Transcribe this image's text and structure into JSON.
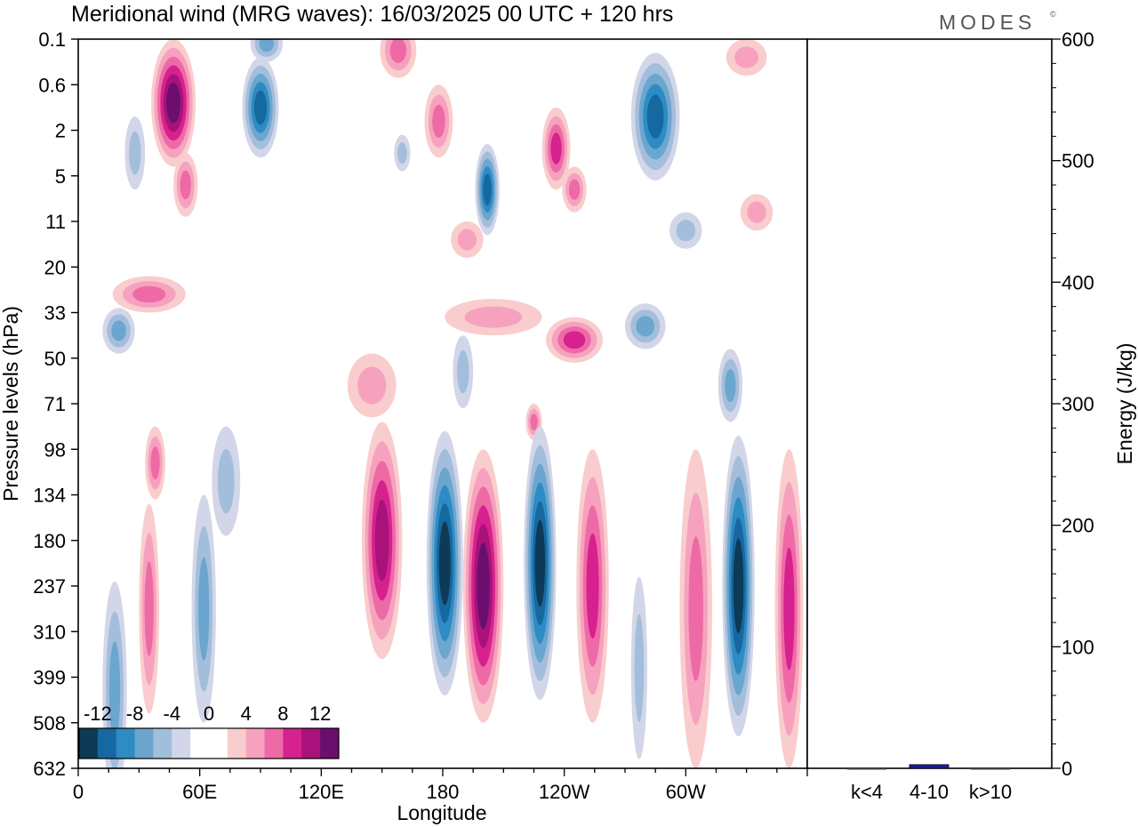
{
  "header": {
    "title": "Meridional wind (MRG waves):  16/03/2025  00 UTC  + 120 hrs",
    "brand": "MODES",
    "brand_mark": "©"
  },
  "chart_data": [
    {
      "type": "heatmap",
      "title": "Meridional wind (MRG waves):  16/03/2025  00 UTC  + 120 hrs",
      "xlabel": "Longitude",
      "ylabel": "Pressure levels (hPa)",
      "x_ticks": [
        {
          "lon": 0,
          "label": "0"
        },
        {
          "lon": 60,
          "label": "60E"
        },
        {
          "lon": 120,
          "label": "120E"
        },
        {
          "lon": 180,
          "label": "180"
        },
        {
          "lon": 240,
          "label": "120W"
        },
        {
          "lon": 300,
          "label": "60W"
        }
      ],
      "xlim": [
        0,
        360
      ],
      "y_levels": [
        "0.1",
        "0.6",
        "2",
        "5",
        "11",
        "20",
        "33",
        "50",
        "71",
        "98",
        "134",
        "180",
        "237",
        "310",
        "399",
        "508",
        "632"
      ],
      "colorbar": {
        "labels": [
          "-12",
          "-8",
          "-4",
          "0",
          "4",
          "8",
          "12"
        ],
        "colors": [
          "#0d3a56",
          "#1668a0",
          "#2e8bc3",
          "#6ba6cf",
          "#a3bedb",
          "#d2d6e8",
          "#ffffff",
          "#ffffff",
          "#f9cdcd",
          "#f6a2be",
          "#ee6aa6",
          "#d6218e",
          "#a8127a",
          "#6b0f6e"
        ]
      },
      "contours": [
        {
          "lon": 47,
          "lev": 1.4,
          "w": 11,
          "h": 1.4,
          "v": 14
        },
        {
          "lon": 53,
          "lev": 3.2,
          "w": 6,
          "h": 0.7,
          "v": 7
        },
        {
          "lon": 90,
          "lev": 1.5,
          "w": 9,
          "h": 1.1,
          "v": -10
        },
        {
          "lon": 93,
          "lev": 0.1,
          "w": 8,
          "h": 0.4,
          "v": -7
        },
        {
          "lon": 158,
          "lev": 0.25,
          "w": 9,
          "h": 0.6,
          "v": 7
        },
        {
          "lon": 178,
          "lev": 1.8,
          "w": 7,
          "h": 0.8,
          "v": 7
        },
        {
          "lon": 202,
          "lev": 3.3,
          "w": 6,
          "h": 1.0,
          "v": -10
        },
        {
          "lon": 236,
          "lev": 2.4,
          "w": 7,
          "h": 0.9,
          "v": 9
        },
        {
          "lon": 245,
          "lev": 3.3,
          "w": 6,
          "h": 0.5,
          "v": 7
        },
        {
          "lon": 285,
          "lev": 1.7,
          "w": 12,
          "h": 1.4,
          "v": -10
        },
        {
          "lon": 28,
          "lev": 2.5,
          "w": 5,
          "h": 0.8,
          "v": -4
        },
        {
          "lon": 330,
          "lev": 0.4,
          "w": 10,
          "h": 0.4,
          "v": 4
        },
        {
          "lon": 160,
          "lev": 2.5,
          "w": 4,
          "h": 0.4,
          "v": -4
        },
        {
          "lon": 192,
          "lev": 4.4,
          "w": 8,
          "h": 0.4,
          "v": 5
        },
        {
          "lon": 300,
          "lev": 4.2,
          "w": 8,
          "h": 0.4,
          "v": -4
        },
        {
          "lon": 335,
          "lev": 3.8,
          "w": 8,
          "h": 0.4,
          "v": 4
        },
        {
          "lon": 205,
          "lev": 6.1,
          "w": 24,
          "h": 0.4,
          "v": 4
        },
        {
          "lon": 245,
          "lev": 6.6,
          "w": 14,
          "h": 0.5,
          "v": 8
        },
        {
          "lon": 280,
          "lev": 6.3,
          "w": 10,
          "h": 0.5,
          "v": -6
        },
        {
          "lon": 20,
          "lev": 6.4,
          "w": 8,
          "h": 0.5,
          "v": -6
        },
        {
          "lon": 35,
          "lev": 5.6,
          "w": 18,
          "h": 0.4,
          "v": 6
        },
        {
          "lon": 145,
          "lev": 7.6,
          "w": 12,
          "h": 0.7,
          "v": 5
        },
        {
          "lon": 190,
          "lev": 7.3,
          "w": 5,
          "h": 0.8,
          "v": -5
        },
        {
          "lon": 225,
          "lev": 8.4,
          "w": 4,
          "h": 0.4,
          "v": 6
        },
        {
          "lon": 322,
          "lev": 7.6,
          "w": 6,
          "h": 0.8,
          "v": -6
        },
        {
          "lon": 38,
          "lev": 9.3,
          "w": 5,
          "h": 0.8,
          "v": 6
        },
        {
          "lon": 73,
          "lev": 9.7,
          "w": 7,
          "h": 1.2,
          "v": -4
        },
        {
          "lon": 150,
          "lev": 11.0,
          "w": 10,
          "h": 2.6,
          "v": 10
        },
        {
          "lon": 181,
          "lev": 11.5,
          "w": 9,
          "h": 2.9,
          "v": -12
        },
        {
          "lon": 200,
          "lev": 12.0,
          "w": 10,
          "h": 3.0,
          "v": 13
        },
        {
          "lon": 228,
          "lev": 11.5,
          "w": 8,
          "h": 3.0,
          "v": -14
        },
        {
          "lon": 254,
          "lev": 12.0,
          "w": 8,
          "h": 3.0,
          "v": 9
        },
        {
          "lon": 305,
          "lev": 12.5,
          "w": 8,
          "h": 3.5,
          "v": 6
        },
        {
          "lon": 326,
          "lev": 12.0,
          "w": 8,
          "h": 3.3,
          "v": -13
        },
        {
          "lon": 351,
          "lev": 12.5,
          "w": 7,
          "h": 3.5,
          "v": 8
        },
        {
          "lon": 35,
          "lev": 12.5,
          "w": 5,
          "h": 2.3,
          "v": 7
        },
        {
          "lon": 62,
          "lev": 12.5,
          "w": 6,
          "h": 2.5,
          "v": -6
        },
        {
          "lon": 18,
          "lev": 14.3,
          "w": 6,
          "h": 2.4,
          "v": -6
        },
        {
          "lon": 277,
          "lev": 13.8,
          "w": 4,
          "h": 2.0,
          "v": -4
        }
      ],
      "bar_panel": {
        "type": "bar",
        "categories": [
          "k<4",
          "4-10",
          "k>10"
        ],
        "values": [
          0,
          3,
          0
        ],
        "ylabel": "Energy (J/kg)",
        "ylim": [
          0,
          600
        ],
        "y_ticks": [
          "0",
          "100",
          "200",
          "300",
          "400",
          "500",
          "600"
        ],
        "bar_color": "#1f1fa0"
      }
    }
  ]
}
